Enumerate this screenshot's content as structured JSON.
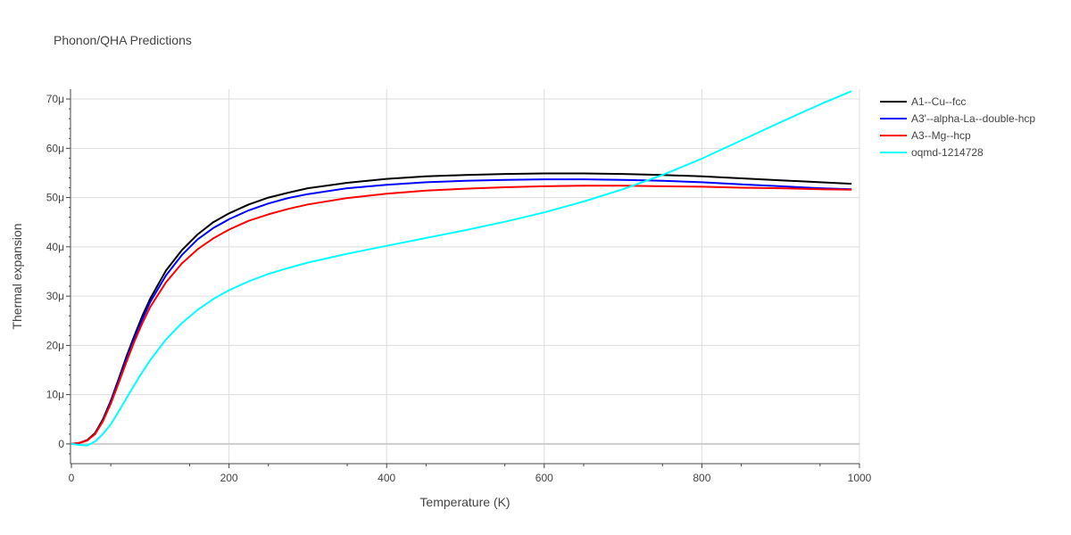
{
  "chart_data": {
    "type": "line",
    "title": "Phonon/QHA Predictions",
    "xlabel": "Temperature (K)",
    "ylabel": "Thermal expansion",
    "xlim": [
      0,
      1000
    ],
    "ylim": [
      -4,
      72
    ],
    "x_ticks": [
      0,
      200,
      400,
      600,
      800,
      1000
    ],
    "x_tick_labels": [
      "0",
      "200",
      "400",
      "600",
      "800",
      "1000"
    ],
    "y_ticks": [
      0,
      10,
      20,
      30,
      40,
      50,
      60,
      70
    ],
    "y_tick_labels": [
      "0",
      "10μ",
      "20μ",
      "30μ",
      "40μ",
      "50μ",
      "60μ",
      "70μ"
    ],
    "y_unit_scale": "1e-6",
    "grid": true,
    "legend_position": "top-right, outside plot",
    "x": [
      0,
      10,
      20,
      30,
      40,
      50,
      60,
      70,
      80,
      90,
      100,
      120,
      140,
      160,
      180,
      200,
      225,
      250,
      275,
      300,
      350,
      400,
      450,
      500,
      550,
      600,
      650,
      700,
      750,
      800,
      850,
      900,
      950,
      990
    ],
    "series": [
      {
        "name": "A1--Cu--fcc",
        "color": "#000000",
        "values": [
          0,
          0.2,
          0.8,
          2.2,
          5.0,
          8.8,
          13.2,
          17.8,
          22.0,
          26.0,
          29.5,
          35.2,
          39.3,
          42.5,
          45.0,
          46.8,
          48.6,
          50.0,
          51.0,
          51.9,
          53.0,
          53.8,
          54.3,
          54.6,
          54.8,
          54.9,
          54.9,
          54.8,
          54.6,
          54.3,
          53.9,
          53.5,
          53.1,
          52.8
        ]
      },
      {
        "name": "A3'--alpha-La--double-hcp",
        "color": "#0000ff",
        "values": [
          0,
          0.2,
          0.7,
          2.0,
          4.7,
          8.5,
          12.8,
          17.3,
          21.5,
          25.3,
          28.8,
          34.2,
          38.3,
          41.5,
          43.8,
          45.6,
          47.4,
          48.8,
          49.9,
          50.7,
          51.9,
          52.6,
          53.1,
          53.4,
          53.6,
          53.7,
          53.7,
          53.6,
          53.4,
          53.1,
          52.7,
          52.3,
          51.9,
          51.7
        ]
      },
      {
        "name": "A3--Mg--hcp",
        "color": "#ff0000",
        "values": [
          0,
          0.2,
          0.7,
          2.0,
          4.6,
          8.2,
          12.4,
          16.7,
          20.8,
          24.5,
          27.8,
          32.8,
          36.6,
          39.5,
          41.7,
          43.5,
          45.3,
          46.6,
          47.7,
          48.6,
          49.9,
          50.8,
          51.4,
          51.8,
          52.1,
          52.3,
          52.4,
          52.4,
          52.3,
          52.2,
          52.0,
          51.9,
          51.7,
          51.6
        ]
      },
      {
        "name": "oqmd-1214728",
        "color": "#00ffff",
        "values": [
          0,
          -0.2,
          -0.3,
          0.5,
          2.0,
          4.0,
          6.6,
          9.3,
          12.0,
          14.6,
          17.0,
          21.2,
          24.5,
          27.2,
          29.4,
          31.2,
          33.0,
          34.5,
          35.7,
          36.8,
          38.6,
          40.2,
          41.8,
          43.4,
          45.1,
          47.0,
          49.2,
          51.7,
          54.6,
          57.9,
          61.6,
          65.3,
          68.9,
          71.6
        ]
      }
    ]
  }
}
